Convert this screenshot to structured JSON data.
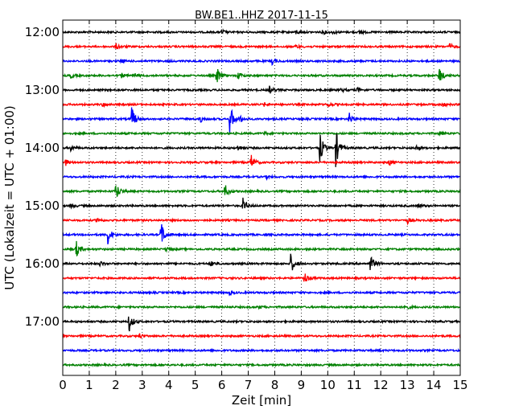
{
  "chart_data": {
    "type": "line",
    "title": "BW.BE1..HHZ 2017-11-15",
    "xlabel": "Zeit  [min]",
    "ylabel": "UTC (Lokalzeit = UTC + 01:00)",
    "xlim": [
      0,
      15
    ],
    "x_ticks": [
      "0",
      "1",
      "2",
      "3",
      "4",
      "5",
      "6",
      "7",
      "8",
      "9",
      "10",
      "11",
      "12",
      "13",
      "14",
      "15"
    ],
    "y_ticks": [
      {
        "label": "12:00",
        "row": 0
      },
      {
        "label": "13:00",
        "row": 4
      },
      {
        "label": "14:00",
        "row": 8
      },
      {
        "label": "15:00",
        "row": 12
      },
      {
        "label": "16:00",
        "row": 16
      },
      {
        "label": "17:00",
        "row": 20
      }
    ],
    "row_minutes": 15,
    "grid": "vertical dotted lines at each minute",
    "colors": [
      "#000000",
      "#ff0000",
      "#0000ff",
      "#008000"
    ],
    "traces": [
      {
        "start": "12:00",
        "events": [
          {
            "t": 6.0,
            "a": 0.3
          },
          {
            "t": 8.8,
            "a": 0.25
          },
          {
            "t": 9.8,
            "a": 0.3
          },
          {
            "t": 10.2,
            "a": 0.2
          },
          {
            "t": 11.2,
            "a": 0.3
          }
        ]
      },
      {
        "start": "12:15",
        "events": [
          {
            "t": 2.0,
            "a": 0.4
          },
          {
            "t": 8.8,
            "a": 0.25
          },
          {
            "t": 14.6,
            "a": 0.35
          }
        ]
      },
      {
        "start": "12:30",
        "events": [
          {
            "t": 2.2,
            "a": 0.25
          },
          {
            "t": 7.9,
            "a": 0.4
          }
        ]
      },
      {
        "start": "12:45",
        "events": [
          {
            "t": 0.3,
            "a": 0.3
          },
          {
            "t": 2.2,
            "a": 0.3
          },
          {
            "t": 2.7,
            "a": 0.25
          },
          {
            "t": 5.8,
            "a": 1.2
          },
          {
            "t": 6.6,
            "a": 0.5
          },
          {
            "t": 14.2,
            "a": 1.1
          }
        ]
      },
      {
        "start": "13:00",
        "events": [
          {
            "t": 7.8,
            "a": 0.45
          },
          {
            "t": 10.5,
            "a": 0.25
          },
          {
            "t": 11.1,
            "a": 0.35
          }
        ]
      },
      {
        "start": "13:15",
        "events": [
          {
            "t": 1.5,
            "a": 0.25
          },
          {
            "t": 7.6,
            "a": 0.2
          },
          {
            "t": 10.0,
            "a": 0.3
          },
          {
            "t": 14.3,
            "a": 0.35
          }
        ]
      },
      {
        "start": "13:30",
        "events": [
          {
            "t": 2.6,
            "a": 1.5
          },
          {
            "t": 5.2,
            "a": 0.4
          },
          {
            "t": 6.3,
            "a": 2.0
          },
          {
            "t": 6.7,
            "a": 0.4
          },
          {
            "t": 10.8,
            "a": 0.8
          }
        ]
      },
      {
        "start": "13:45",
        "events": [
          {
            "t": 7.6,
            "a": 0.2
          },
          {
            "t": 14.2,
            "a": 0.3
          }
        ]
      },
      {
        "start": "14:00",
        "events": [
          {
            "t": 0.3,
            "a": 0.35
          },
          {
            "t": 6.6,
            "a": 0.35
          },
          {
            "t": 9.7,
            "a": 2.0
          },
          {
            "t": 10.3,
            "a": 2.4
          },
          {
            "t": 13.3,
            "a": 0.35
          }
        ]
      },
      {
        "start": "14:15",
        "events": [
          {
            "t": 0.1,
            "a": 0.4
          },
          {
            "t": 7.1,
            "a": 1.0
          },
          {
            "t": 12.3,
            "a": 0.4
          }
        ]
      },
      {
        "start": "14:30",
        "events": [
          {
            "t": 7.7,
            "a": 0.2
          }
        ]
      },
      {
        "start": "14:45",
        "events": [
          {
            "t": 2.0,
            "a": 1.2
          },
          {
            "t": 6.1,
            "a": 1.0
          }
        ]
      },
      {
        "start": "15:00",
        "events": [
          {
            "t": 0.3,
            "a": 0.3
          },
          {
            "t": 6.8,
            "a": 1.0
          },
          {
            "t": 13.4,
            "a": 0.3
          }
        ]
      },
      {
        "start": "15:15",
        "events": [
          {
            "t": 1.3,
            "a": 0.3
          },
          {
            "t": 13.0,
            "a": 0.4
          }
        ]
      },
      {
        "start": "15:30",
        "events": [
          {
            "t": 1.7,
            "a": 1.2
          },
          {
            "t": 3.7,
            "a": 1.8
          }
        ]
      },
      {
        "start": "15:45",
        "events": [
          {
            "t": 0.5,
            "a": 1.1
          },
          {
            "t": 3.9,
            "a": 0.3
          }
        ]
      },
      {
        "start": "16:00",
        "events": [
          {
            "t": 1.4,
            "a": 0.3
          },
          {
            "t": 5.6,
            "a": 0.4
          },
          {
            "t": 8.6,
            "a": 1.3
          },
          {
            "t": 11.6,
            "a": 1.2
          }
        ]
      },
      {
        "start": "16:15",
        "events": [
          {
            "t": 9.1,
            "a": 0.9
          }
        ]
      },
      {
        "start": "16:30",
        "events": [
          {
            "t": 6.3,
            "a": 0.25
          }
        ]
      },
      {
        "start": "16:45",
        "events": [
          {
            "t": 7.4,
            "a": 0.2
          },
          {
            "t": 12.9,
            "a": 0.4
          }
        ]
      },
      {
        "start": "17:00",
        "events": [
          {
            "t": 2.5,
            "a": 1.3
          }
        ]
      },
      {
        "start": "17:15",
        "events": [
          {
            "t": 2.9,
            "a": 0.3
          }
        ]
      },
      {
        "start": "17:30",
        "events": []
      },
      {
        "start": "17:45",
        "events": []
      }
    ]
  }
}
